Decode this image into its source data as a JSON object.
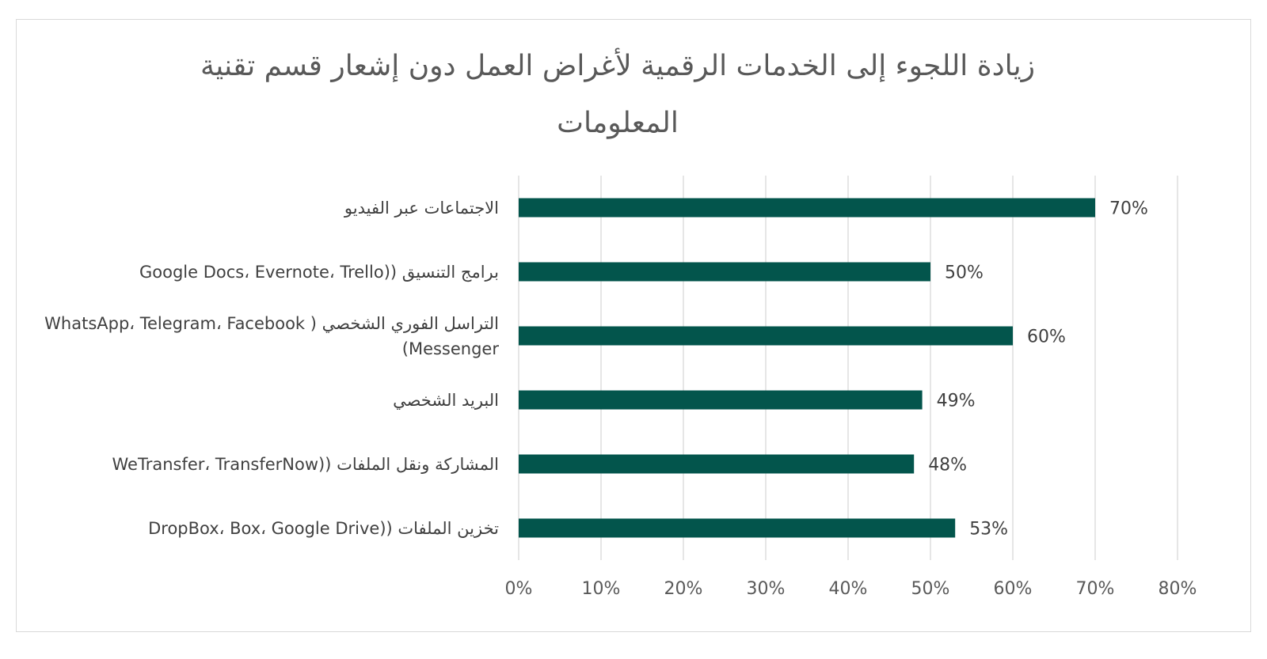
{
  "chart_data": {
    "type": "bar",
    "orientation": "horizontal",
    "title": "زيادة اللجوء إلى الخدمات الرقمية لأغراض العمل دون إشعار قسم تقنية المعلومات",
    "categories": [
      "الاجتماعات عبر الفيديو",
      "برامج التنسيق ((Google Docs، Evernote، Trello",
      "التراسل الفوري الشخصي ( WhatsApp، Telegram، Facebook Messenger)",
      "البريد الشخصي",
      "المشاركة ونقل الملفات ((WeTransfer، TransferNow",
      "تخزين الملفات ((DropBox، Box، Google Drive"
    ],
    "values": [
      70,
      50,
      60,
      49,
      48,
      53
    ],
    "value_labels": [
      "70%",
      "50%",
      "60%",
      "49%",
      "48%",
      "53%"
    ],
    "xlim": [
      0,
      80
    ],
    "x_ticks": [
      "0%",
      "10%",
      "20%",
      "30%",
      "40%",
      "50%",
      "60%",
      "70%",
      "80%"
    ],
    "grid": true,
    "legend": "none",
    "bar_color": "#03554c",
    "xlabel": "",
    "ylabel": ""
  }
}
